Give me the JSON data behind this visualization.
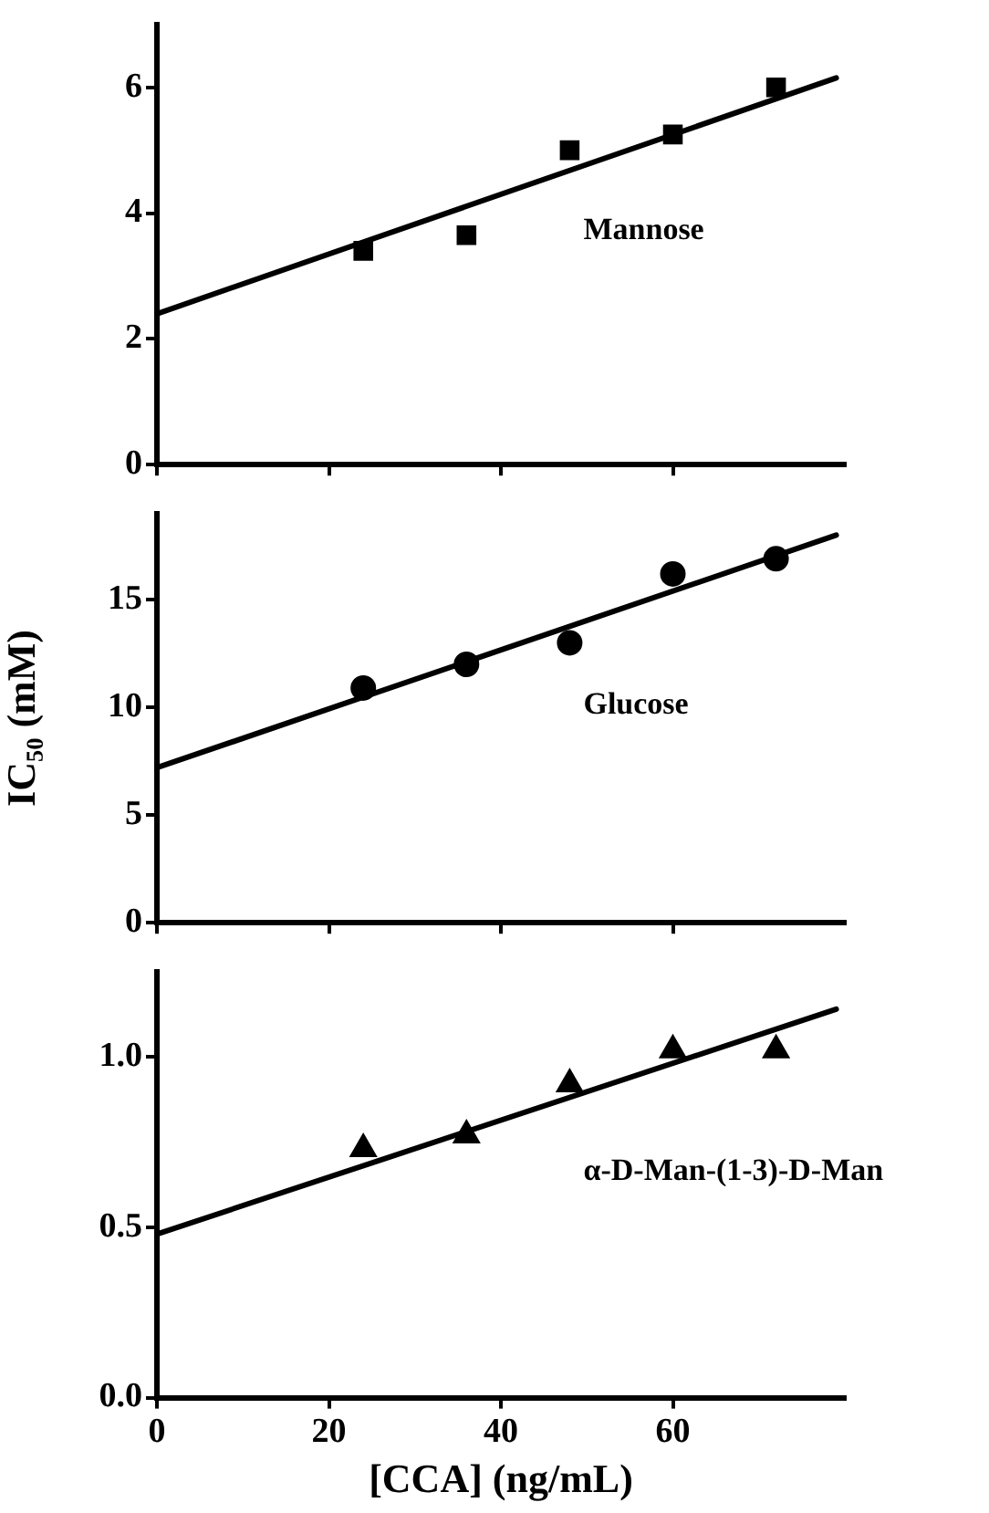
{
  "chart_data": [
    {
      "type": "scatter",
      "xlim": [
        0,
        80
      ],
      "xticks": [
        0,
        20,
        40,
        60
      ],
      "ylim": [
        0,
        7
      ],
      "yticks": [
        0,
        2,
        4,
        6
      ],
      "tick_labels": "y",
      "legend": false,
      "grid": false,
      "series": [
        {
          "name": "Mannose",
          "type": "scatter",
          "marker": "square",
          "color": "#000000",
          "x": [
            24,
            36,
            48,
            60,
            72
          ],
          "values": [
            3.4,
            3.65,
            5.0,
            5.25,
            6.0
          ]
        },
        {
          "type": "line",
          "marker": "none",
          "line_style": "solid",
          "color": "#000000",
          "x": [
            0,
            79
          ],
          "values": [
            2.4,
            6.15
          ]
        }
      ]
    },
    {
      "type": "scatter",
      "ylabel": "IC₅₀ (mM)",
      "xlim": [
        0,
        80
      ],
      "xticks": [
        0,
        20,
        40,
        60
      ],
      "ylim": [
        0,
        19
      ],
      "yticks": [
        0,
        5,
        10,
        15
      ],
      "tick_labels": "y",
      "legend": false,
      "grid": false,
      "series": [
        {
          "name": "Glucose",
          "type": "scatter",
          "marker": "circle",
          "color": "#000000",
          "x": [
            24,
            36,
            48,
            60,
            72
          ],
          "values": [
            10.9,
            12.0,
            13.0,
            16.2,
            16.9
          ]
        },
        {
          "type": "line",
          "marker": "none",
          "line_style": "solid",
          "color": "#000000",
          "x": [
            0,
            79
          ],
          "values": [
            7.2,
            18.0
          ]
        }
      ]
    },
    {
      "type": "scatter",
      "xlabel": "[CCA] (ng/mL)",
      "xlim": [
        0,
        80
      ],
      "xticks": [
        0,
        20,
        40,
        60
      ],
      "ylim": [
        0,
        1.25
      ],
      "yticks": [
        {
          "value": 0,
          "label": "0.0"
        },
        {
          "value": 0.5,
          "label": "0.5"
        },
        {
          "value": 1,
          "label": "1.0"
        }
      ],
      "legend": false,
      "grid": false,
      "series": [
        {
          "name": "α-D-Man-(1-3)-D-Man",
          "type": "scatter",
          "marker": "triangle",
          "color": "#000000",
          "x": [
            24,
            36,
            48,
            60,
            72
          ],
          "values": [
            0.73,
            0.77,
            0.92,
            1.02,
            1.02
          ]
        },
        {
          "type": "line",
          "marker": "none",
          "line_style": "solid",
          "color": "#000000",
          "x": [
            0,
            79
          ],
          "values": [
            0.48,
            1.14
          ]
        }
      ]
    }
  ]
}
